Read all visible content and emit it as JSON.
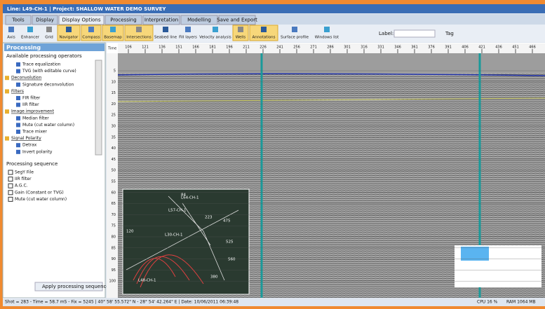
{
  "title_bar": {
    "title": "Line: L49-CH-1 | Project: SHALLOW WATER DEMO SURVEY"
  },
  "tabs": [
    "Tools",
    "Display",
    "Display Options",
    "Processing",
    "Interpretation",
    "Modelling",
    "Save and Export"
  ],
  "ribbon": {
    "buttons": [
      "Axis",
      "Enhancer",
      "Grid",
      "Navigator",
      "Compass",
      "Basemap",
      "Intersections",
      "Seabed line",
      "Fill layers",
      "Velocity analysis",
      "Wells",
      "Annotations",
      "Surface profile",
      "Windows list"
    ],
    "label": "Label:",
    "tag": "Tag"
  },
  "left_panel": {
    "header": "Processing",
    "available_title": "Available processing operators",
    "operators": [
      "Trace equalization",
      "TVG (with editable curve)",
      "Deconvolution",
      "Signature deconvolution",
      "Filters",
      "FIR filter",
      "IIR filter",
      "Image improvement",
      "Median filter",
      "Mute (cut water column)",
      "Trace mixer",
      "Signal Polarity",
      "Detrax",
      "Invert polarity"
    ],
    "sequence_title": "Processing sequence",
    "sequence": [
      "SegY File",
      "IIR filter",
      "A.G.C.",
      "Gain (Constant or TVG)",
      "Mute (cut water column)"
    ],
    "apply_button": "Apply processing sequence"
  },
  "display": {
    "corner": "Time",
    "top_ruler": [
      "106",
      "121",
      "136",
      "151",
      "166",
      "181",
      "196",
      "211",
      "226",
      "241",
      "256",
      "271",
      "286",
      "301",
      "316",
      "331",
      "346",
      "361",
      "376",
      "391",
      "406",
      "421",
      "436",
      "451",
      "466"
    ],
    "left_ruler": [
      "5",
      "10",
      "15",
      "20",
      "25",
      "30",
      "35",
      "40",
      "45",
      "50",
      "55",
      "60",
      "65",
      "70",
      "75",
      "80",
      "85",
      "90",
      "95",
      "100"
    ]
  },
  "map": {
    "labels": [
      "L64-CH-1",
      "L57-CH-1",
      "L30-CH-1",
      "L48-CH-1",
      "84",
      "223",
      "475",
      "525",
      "560",
      "120",
      "380"
    ]
  },
  "status_bar": {
    "position": "Shot = 283 - Time = 58.7 mS - Fix = 5245 | 40° 58' 55.572\" N - 28° 54' 42.264\" E | Date: 10/06/2011 06:39:48",
    "cpu": "CPU 16 %",
    "ram": "RAM 1064 MB"
  }
}
